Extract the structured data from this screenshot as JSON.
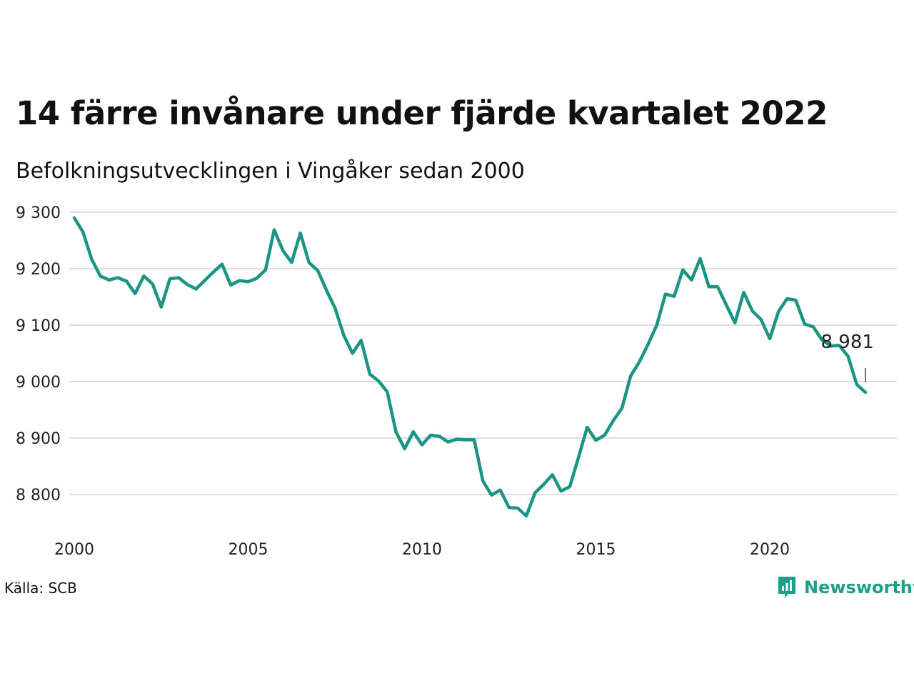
{
  "title": "14 färre invånare under fjärde kvartalet 2022",
  "subtitle": "Befolkningsutvecklingen i Vingåker sedan 2000",
  "source": "Källa: SCB",
  "brand": {
    "name": "Newsworthy",
    "icon": "newsworthy-logo-icon",
    "color": "#1f9e8a"
  },
  "chart_data": {
    "type": "line",
    "title": "14 färre invånare under fjärde kvartalet 2022",
    "subtitle": "Befolkningsutvecklingen i Vingåker sedan 2000",
    "xlabel": "",
    "ylabel": "",
    "xlim": [
      2000,
      2023.7
    ],
    "ylim": [
      8760,
      9310
    ],
    "grid": true,
    "line_color": "#1a9483",
    "x_ticks": [
      2000,
      2005,
      2010,
      2015,
      2020
    ],
    "x_tick_labels": [
      "2000",
      "2005",
      "2010",
      "2015",
      "2020"
    ],
    "y_ticks": [
      8800,
      8900,
      9000,
      9100,
      9200,
      9300
    ],
    "y_tick_labels": [
      "8 800",
      "8 900",
      "9 000",
      "9 100",
      "9 200",
      "9 300"
    ],
    "annotation": {
      "x": 2022.75,
      "y": 8981,
      "text": "8 981"
    },
    "series": [
      {
        "x": [
          2000.0,
          2000.25,
          2000.5,
          2000.75,
          2001.0,
          2001.25,
          2001.5,
          2001.75,
          2002.0,
          2002.25,
          2002.5,
          2002.75,
          2003.0,
          2003.25,
          2003.5,
          2003.75,
          2004.0,
          2004.25,
          2004.5,
          2004.75,
          2005.0,
          2005.25,
          2005.5,
          2005.75,
          2006.0,
          2006.25,
          2006.5,
          2006.75,
          2007.0,
          2007.25,
          2007.5,
          2007.75,
          2008.0,
          2008.25,
          2008.5,
          2008.75,
          2009.0,
          2009.25,
          2009.5,
          2009.75,
          2010.0,
          2010.25,
          2010.5,
          2010.75,
          2011.0,
          2011.25,
          2011.5,
          2011.75,
          2012.0,
          2012.25,
          2012.5,
          2012.75,
          2013.0,
          2013.25,
          2013.5,
          2013.75,
          2014.0,
          2014.25,
          2014.5,
          2014.75,
          2015.0,
          2015.25,
          2015.5,
          2015.75,
          2016.0,
          2016.25,
          2016.5,
          2016.75,
          2017.0,
          2017.25,
          2017.5,
          2017.75,
          2018.0,
          2018.25,
          2018.5,
          2018.75,
          2019.0,
          2019.25,
          2019.5,
          2019.75,
          2020.0,
          2020.25,
          2020.5,
          2020.75,
          2021.0,
          2021.25,
          2021.5,
          2021.75,
          2022.0,
          2022.25,
          2022.5,
          2022.75
        ],
        "values": [
          9290,
          9265,
          9217,
          9187,
          9180,
          9184,
          9178,
          9156,
          9187,
          9173,
          9132,
          9182,
          9184,
          9172,
          9164,
          9179,
          9194,
          9208,
          9171,
          9179,
          9177,
          9183,
          9198,
          9269,
          9232,
          9211,
          9263,
          9211,
          9197,
          9162,
          9130,
          9082,
          9050,
          9073,
          9013,
          9001,
          8982,
          8911,
          8881,
          8911,
          8888,
          8905,
          8903,
          8893,
          8898,
          8897,
          8897,
          8824,
          8799,
          8808,
          8777,
          8776,
          8762,
          8803,
          8818,
          8835,
          8806,
          8814,
          8866,
          8919,
          8896,
          8905,
          8931,
          8953,
          9010,
          9035,
          9066,
          9100,
          9155,
          9151,
          9198,
          9180,
          9218,
          9168,
          9168,
          9136,
          9104,
          9158,
          9125,
          9110,
          9076,
          9124,
          9147,
          9144,
          9102,
          9097,
          9074,
          9063,
          9064,
          9045,
          8995,
          8981
        ]
      }
    ]
  }
}
